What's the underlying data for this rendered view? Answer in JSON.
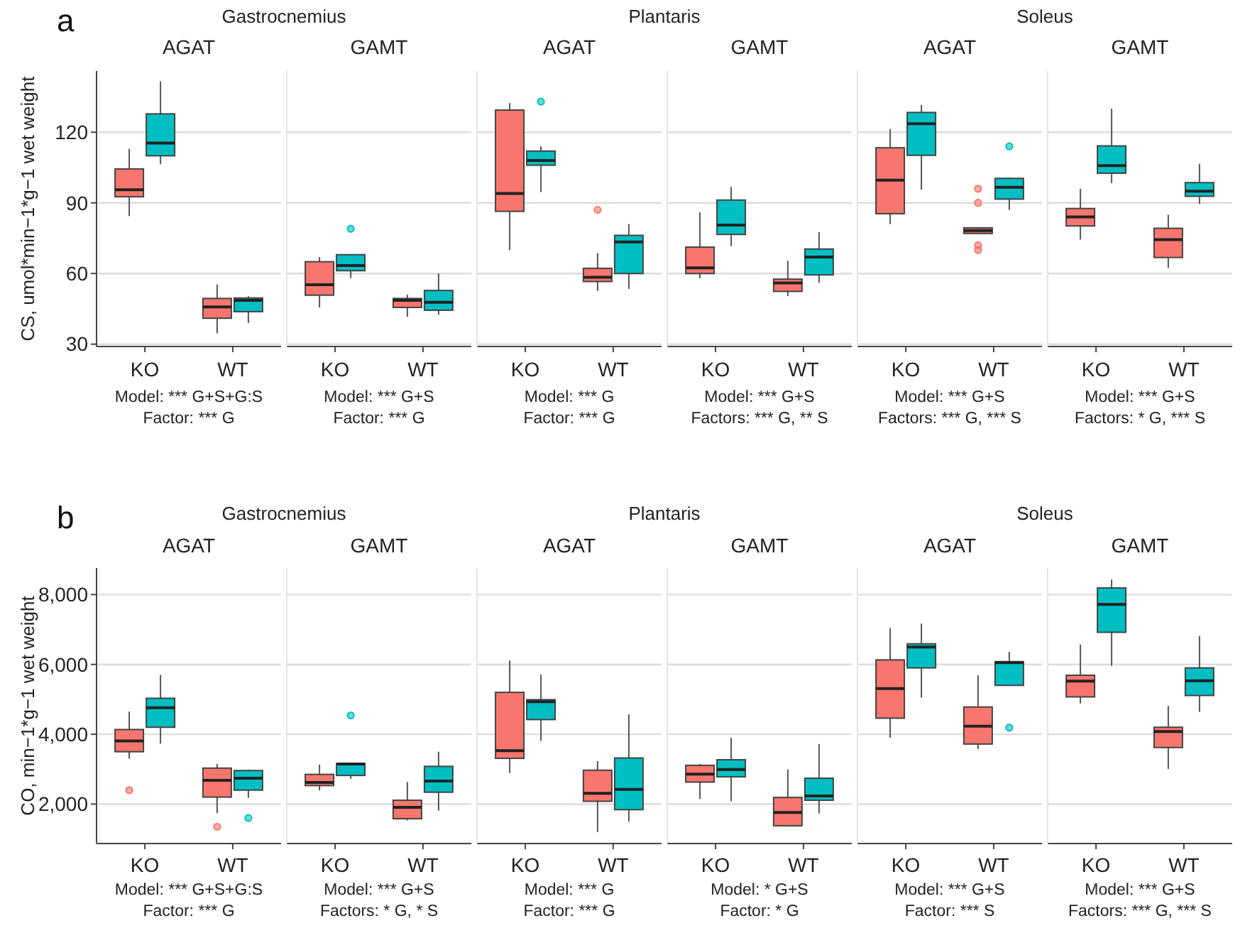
{
  "chart_data": [
    {
      "type": "box",
      "subtitle": "Gastrocnemius",
      "title": "AGAT",
      "ylabel": "CS, umol*min−1*g−1 wet weight",
      "categories": [
        "KO",
        "WT"
      ],
      "ylim": [
        29,
        146
      ],
      "yticks": [
        30,
        60,
        90,
        120
      ],
      "grid": "y",
      "annotations": [
        "a",
        "Model: *** G+S+G:S",
        "Factor: *** G"
      ],
      "series": [
        {
          "color": "#f8766d",
          "boxes": [
            {
              "low": 84.4,
              "q1": 92.6,
              "median": 95.6,
              "q3": 104.4,
              "high": 113
            },
            {
              "low": 34.6,
              "q1": 41,
              "median": 45.8,
              "q3": 49.4,
              "high": 55.4
            }
          ]
        },
        {
          "color": "#00bfc4",
          "boxes": [
            {
              "low": 106.4,
              "q1": 110,
              "median": 115.4,
              "q3": 127.8,
              "high": 141.6
            },
            {
              "low": 39,
              "q1": 43.8,
              "median": 48.6,
              "q3": 49.6,
              "high": 50.4
            }
          ]
        }
      ]
    },
    {
      "type": "box",
      "title": "GAMT",
      "categories": [
        "KO",
        "WT"
      ],
      "ylim": [
        29,
        146
      ],
      "yticks": [
        30,
        60,
        90,
        120
      ],
      "grid": "y",
      "tick_labels": "x",
      "annotations": [
        "Model: *** G+S",
        "Factor: *** G"
      ],
      "series": [
        {
          "color": "#f8766d",
          "boxes": [
            {
              "low": 45.6,
              "q1": 50.8,
              "median": 55.2,
              "q3": 65,
              "high": 67
            },
            {
              "low": 41.6,
              "q1": 45.6,
              "median": 48.6,
              "q3": 49.4,
              "high": 51
            }
          ]
        },
        {
          "color": "#00bfc4",
          "boxes": [
            {
              "low": 58,
              "q1": 61.2,
              "median": 63.4,
              "q3": 68,
              "high": 68,
              "outliers": [
                79
              ]
            },
            {
              "low": 42.4,
              "q1": 44.4,
              "median": 47.8,
              "q3": 52.8,
              "high": 60
            }
          ]
        }
      ]
    },
    {
      "type": "box",
      "subtitle": "Plantaris",
      "title": "AGAT",
      "categories": [
        "KO",
        "WT"
      ],
      "ylim": [
        29,
        146
      ],
      "yticks": [
        30,
        60,
        90,
        120
      ],
      "grid": "y",
      "tick_labels": "x",
      "annotations": [
        "Model: *** G",
        "Factor: *** G"
      ],
      "series": [
        {
          "color": "#f8766d",
          "boxes": [
            {
              "low": 70,
              "q1": 86.4,
              "median": 94,
              "q3": 129.4,
              "high": 132.4
            },
            {
              "low": 52.6,
              "q1": 56.6,
              "median": 58.4,
              "q3": 62.2,
              "high": 68.6,
              "outliers": [
                87
              ]
            }
          ]
        },
        {
          "color": "#00bfc4",
          "boxes": [
            {
              "low": 94.6,
              "q1": 106,
              "median": 108,
              "q3": 112,
              "high": 114,
              "outliers": [
                133
              ]
            },
            {
              "low": 53.4,
              "q1": 60,
              "median": 73.4,
              "q3": 76.2,
              "high": 81
            }
          ]
        }
      ]
    },
    {
      "type": "box",
      "title": "GAMT",
      "categories": [
        "KO",
        "WT"
      ],
      "ylim": [
        29,
        146
      ],
      "yticks": [
        30,
        60,
        90,
        120
      ],
      "grid": "y",
      "tick_labels": "x",
      "annotations": [
        "Model: *** G+S",
        "Factors: *** G, ** S"
      ],
      "series": [
        {
          "color": "#f8766d",
          "boxes": [
            {
              "low": 58,
              "q1": 60,
              "median": 62.4,
              "q3": 71.2,
              "high": 86
            },
            {
              "low": 50.4,
              "q1": 52.4,
              "median": 56,
              "q3": 57.6,
              "high": 65.4
            }
          ]
        },
        {
          "color": "#00bfc4",
          "boxes": [
            {
              "low": 71.6,
              "q1": 76.6,
              "median": 80.6,
              "q3": 91.2,
              "high": 96.8
            },
            {
              "low": 56,
              "q1": 59.4,
              "median": 67,
              "q3": 70.4,
              "high": 77.6
            }
          ]
        }
      ]
    },
    {
      "type": "box",
      "subtitle": "Soleus",
      "title": "AGAT",
      "categories": [
        "KO",
        "WT"
      ],
      "ylim": [
        29,
        146
      ],
      "yticks": [
        30,
        60,
        90,
        120
      ],
      "grid": "y",
      "tick_labels": "x",
      "annotations": [
        "Model: *** G+S",
        "Factors: *** G, *** S"
      ],
      "series": [
        {
          "color": "#f8766d",
          "boxes": [
            {
              "low": 81,
              "q1": 85.4,
              "median": 99.6,
              "q3": 113.4,
              "high": 121.4
            },
            {
              "low": 77,
              "q1": 77,
              "median": 78.2,
              "q3": 79.4,
              "high": 79.4,
              "outliers": [
                96,
                90,
                72,
                70
              ]
            }
          ]
        },
        {
          "color": "#00bfc4",
          "boxes": [
            {
              "low": 95.6,
              "q1": 110.2,
              "median": 123.6,
              "q3": 128.4,
              "high": 131.6
            },
            {
              "low": 87,
              "q1": 91.6,
              "median": 96.6,
              "q3": 100.4,
              "high": 100.8,
              "outliers": [
                114
              ]
            }
          ]
        }
      ]
    },
    {
      "type": "box",
      "title": "GAMT",
      "categories": [
        "KO",
        "WT"
      ],
      "ylim": [
        29,
        146
      ],
      "yticks": [
        30,
        60,
        90,
        120
      ],
      "grid": "y",
      "tick_labels": "x",
      "annotations": [
        "Model: *** G+S",
        "Factors: * G, *** S"
      ],
      "series": [
        {
          "color": "#f8766d",
          "boxes": [
            {
              "low": 74.4,
              "q1": 80.2,
              "median": 84,
              "q3": 87.6,
              "high": 96
            },
            {
              "low": 62.4,
              "q1": 66.8,
              "median": 74.4,
              "q3": 79.2,
              "high": 85
            }
          ]
        },
        {
          "color": "#00bfc4",
          "boxes": [
            {
              "low": 98.4,
              "q1": 102.6,
              "median": 105.8,
              "q3": 114.2,
              "high": 130
            },
            {
              "low": 89.6,
              "q1": 92.8,
              "median": 95,
              "q3": 98.6,
              "high": 106.6
            }
          ]
        }
      ]
    },
    {
      "type": "box",
      "subtitle": "Gastrocnemius",
      "title": "AGAT",
      "ylabel": "CO, min−1*g−1 wet weight",
      "categories": [
        "KO",
        "WT"
      ],
      "ylim": [
        870,
        8760
      ],
      "yticks": [
        {
          "value": 2000,
          "label": "2,000"
        },
        {
          "value": 4000,
          "label": "4,000"
        },
        {
          "value": 6000,
          "label": "6,000"
        },
        {
          "value": 8000,
          "label": "8,000"
        }
      ],
      "grid": "y",
      "annotations": [
        "b",
        "Model: *** G+S+G:S",
        "Factor: *** G"
      ],
      "series": [
        {
          "color": "#f8766d",
          "boxes": [
            {
              "low": 3300,
              "q1": 3500,
              "median": 3810,
              "q3": 4135,
              "high": 4650,
              "outliers": [
                2400
              ]
            },
            {
              "low": 1740,
              "q1": 2200,
              "median": 2680,
              "q3": 3030,
              "high": 3150,
              "outliers": [
                1350
              ]
            }
          ]
        },
        {
          "color": "#00bfc4",
          "boxes": [
            {
              "low": 3730,
              "q1": 4200,
              "median": 4760,
              "q3": 5030,
              "high": 5700
            },
            {
              "low": 2180,
              "q1": 2400,
              "median": 2740,
              "q3": 2960,
              "high": 2990,
              "outliers": [
                1600
              ]
            }
          ]
        }
      ]
    },
    {
      "type": "box",
      "title": "GAMT",
      "categories": [
        "KO",
        "WT"
      ],
      "ylim": [
        870,
        8760
      ],
      "yticks": [
        2000,
        4000,
        6000,
        8000
      ],
      "grid": "y",
      "tick_labels": "x",
      "annotations": [
        "Model: *** G+S",
        "Factors: * G, * S"
      ],
      "series": [
        {
          "color": "#f8766d",
          "boxes": [
            {
              "low": 2390,
              "q1": 2530,
              "median": 2620,
              "q3": 2850,
              "high": 3130
            },
            {
              "low": 1530,
              "q1": 1580,
              "median": 1905,
              "q3": 2110,
              "high": 2630
            }
          ]
        },
        {
          "color": "#00bfc4",
          "boxes": [
            {
              "low": 2720,
              "q1": 2820,
              "median": 3150,
              "q3": 3160,
              "high": 3160,
              "outliers": [
                4540
              ]
            },
            {
              "low": 1810,
              "q1": 2340,
              "median": 2660,
              "q3": 3080,
              "high": 3500
            }
          ]
        }
      ]
    },
    {
      "type": "box",
      "subtitle": "Plantaris",
      "title": "AGAT",
      "categories": [
        "KO",
        "WT"
      ],
      "ylim": [
        870,
        8760
      ],
      "yticks": [
        2000,
        4000,
        6000,
        8000
      ],
      "grid": "y",
      "tick_labels": "x",
      "annotations": [
        "Model: *** G",
        "Factor: *** G"
      ],
      "series": [
        {
          "color": "#f8766d",
          "boxes": [
            {
              "low": 2890,
              "q1": 3310,
              "median": 3530,
              "q3": 5200,
              "high": 6110
            },
            {
              "low": 1200,
              "q1": 2080,
              "median": 2310,
              "q3": 2970,
              "high": 3230
            }
          ]
        },
        {
          "color": "#00bfc4",
          "boxes": [
            {
              "low": 3810,
              "q1": 4420,
              "median": 4930,
              "q3": 4990,
              "high": 5710
            },
            {
              "low": 1500,
              "q1": 1840,
              "median": 2420,
              "q3": 3320,
              "high": 4570
            }
          ]
        }
      ]
    },
    {
      "type": "box",
      "title": "GAMT",
      "categories": [
        "KO",
        "WT"
      ],
      "ylim": [
        870,
        8760
      ],
      "yticks": [
        2000,
        4000,
        6000,
        8000
      ],
      "grid": "y",
      "tick_labels": "x",
      "annotations": [
        "Model: * G+S",
        "Factor: * G"
      ],
      "series": [
        {
          "color": "#f8766d",
          "boxes": [
            {
              "low": 2150,
              "q1": 2630,
              "median": 2860,
              "q3": 3110,
              "high": 3150
            },
            {
              "low": 1380,
              "q1": 1380,
              "median": 1760,
              "q3": 2190,
              "high": 2990
            }
          ]
        },
        {
          "color": "#00bfc4",
          "boxes": [
            {
              "low": 2080,
              "q1": 2780,
              "median": 2990,
              "q3": 3270,
              "high": 3900
            },
            {
              "low": 1730,
              "q1": 2110,
              "median": 2230,
              "q3": 2740,
              "high": 3720
            }
          ]
        }
      ]
    },
    {
      "type": "box",
      "subtitle": "Soleus",
      "title": "AGAT",
      "categories": [
        "KO",
        "WT"
      ],
      "ylim": [
        870,
        8760
      ],
      "yticks": [
        2000,
        4000,
        6000,
        8000
      ],
      "grid": "y",
      "tick_labels": "x",
      "annotations": [
        "Model: *** G+S",
        "Factor: *** S"
      ],
      "series": [
        {
          "color": "#f8766d",
          "boxes": [
            {
              "low": 3900,
              "q1": 4460,
              "median": 5310,
              "q3": 6130,
              "high": 7040
            },
            {
              "low": 3580,
              "q1": 3720,
              "median": 4230,
              "q3": 4780,
              "high": 5690
            }
          ]
        },
        {
          "color": "#00bfc4",
          "boxes": [
            {
              "low": 5050,
              "q1": 5900,
              "median": 6500,
              "q3": 6590,
              "high": 7170
            },
            {
              "low": 5400,
              "q1": 5400,
              "median": 6050,
              "q3": 6080,
              "high": 6360,
              "outliers": [
                4190
              ]
            }
          ]
        }
      ]
    },
    {
      "type": "box",
      "title": "GAMT",
      "categories": [
        "KO",
        "WT"
      ],
      "ylim": [
        870,
        8760
      ],
      "yticks": [
        2000,
        4000,
        6000,
        8000
      ],
      "grid": "y",
      "tick_labels": "x",
      "annotations": [
        "Model: *** G+S",
        "Factors: *** G, *** S"
      ],
      "series": [
        {
          "color": "#f8766d",
          "boxes": [
            {
              "low": 4880,
              "q1": 5070,
              "median": 5520,
              "q3": 5690,
              "high": 6570
            },
            {
              "low": 3000,
              "q1": 3620,
              "median": 4080,
              "q3": 4200,
              "high": 4810
            }
          ]
        },
        {
          "color": "#00bfc4",
          "boxes": [
            {
              "low": 5960,
              "q1": 6920,
              "median": 7720,
              "q3": 8190,
              "high": 8430
            },
            {
              "low": 4640,
              "q1": 5110,
              "median": 5530,
              "q3": 5900,
              "high": 6810
            }
          ]
        }
      ]
    }
  ]
}
